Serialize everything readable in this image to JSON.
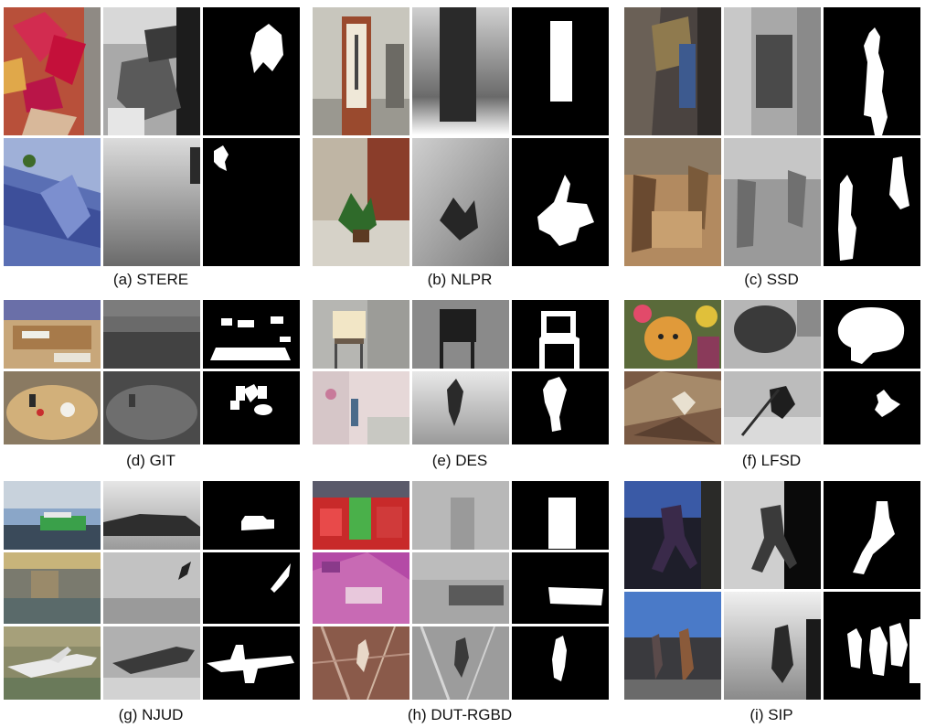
{
  "figure": {
    "panels": [
      {
        "id": "stere",
        "caption": "(a) STERE"
      },
      {
        "id": "nlpr",
        "caption": "(b) NLPR"
      },
      {
        "id": "ssd",
        "caption": "(c) SSD"
      },
      {
        "id": "git",
        "caption": "(d) GIT"
      },
      {
        "id": "des",
        "caption": "(e) DES"
      },
      {
        "id": "lfsd",
        "caption": "(f) LFSD"
      },
      {
        "id": "njud",
        "caption": "(g) NJUD"
      },
      {
        "id": "dut",
        "caption": "(h) DUT-RGBD"
      },
      {
        "id": "sip",
        "caption": "(i) SIP"
      }
    ],
    "column_kinds": [
      "rgb-image",
      "depth-map",
      "ground-truth-mask"
    ],
    "colors": {
      "background": "#ffffff",
      "mask_bg": "#000000",
      "mask_fg": "#ffffff"
    }
  }
}
